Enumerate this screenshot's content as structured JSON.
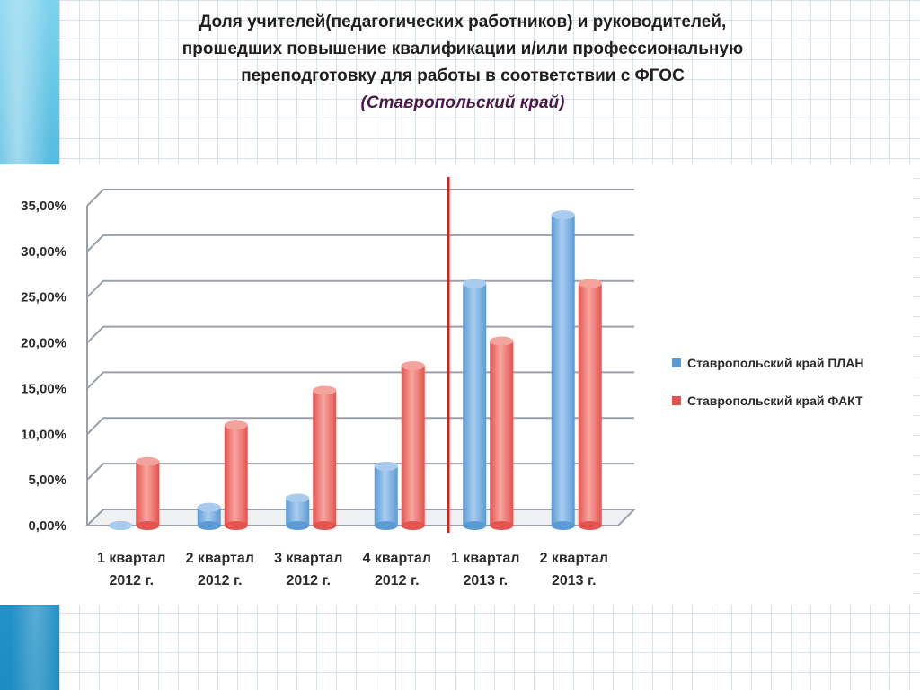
{
  "title": {
    "lines": [
      "Доля учителей(педагогических работников) и руководителей,",
      "прошедших повышение квалификации и/или профессиональную",
      "переподготовку для работы в соответствии с ФГОС"
    ],
    "subtitle": "(Ставропольский  край)"
  },
  "colors": {
    "plan": "#5b9bd5",
    "fact": "#e5534f",
    "divider": "#d81e1e",
    "grid": "#9aa0a6"
  },
  "chart_data": {
    "type": "bar",
    "categories": [
      [
        "1 квартал",
        "2012 г."
      ],
      [
        "2 квартал",
        "2012 г."
      ],
      [
        "3 квартал",
        "2012 г."
      ],
      [
        "4 квартал",
        "2012 г."
      ],
      [
        "1 квартал",
        "2013 г."
      ],
      [
        "2 квартал",
        "2013 г."
      ]
    ],
    "series": [
      {
        "name": "Ставропольский край ПЛАН",
        "values": [
          0.0,
          2.0,
          3.0,
          6.5,
          26.5,
          34.0
        ]
      },
      {
        "name": "Ставропольский край ФАКТ",
        "values": [
          7.0,
          11.0,
          14.8,
          17.5,
          20.2,
          26.5
        ]
      }
    ],
    "ylim": [
      0,
      35
    ],
    "yticks": [
      "0,00%",
      "5,00%",
      "10,00%",
      "15,00%",
      "20,00%",
      "25,00%",
      "30,00%",
      "35,00%"
    ],
    "grid": true,
    "legend_position": "right",
    "divider_after_category": 3
  }
}
